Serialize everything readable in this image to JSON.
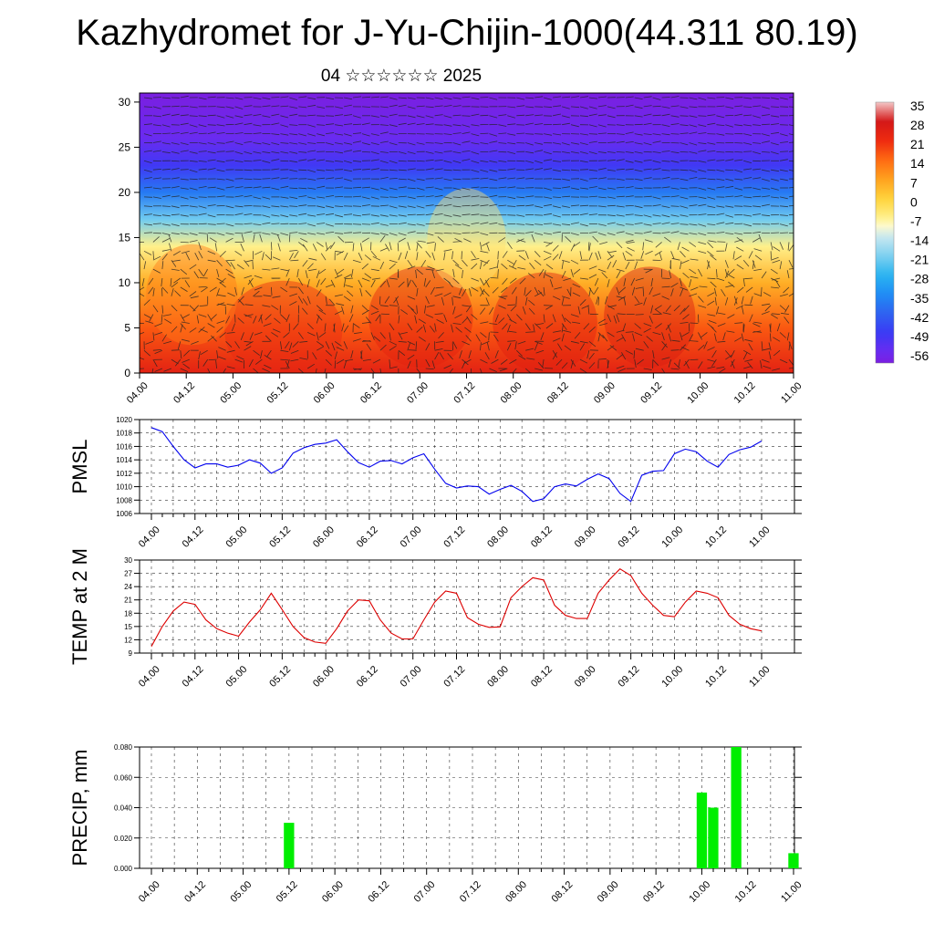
{
  "title": "Kazhydromet for J-Yu-Chijin-1000(44.311 80.19)",
  "subtitle": "04 ☆☆☆☆☆☆ 2025",
  "time_labels": [
    "04.00",
    "04.12",
    "05.00",
    "05.12",
    "06.00",
    "06.12",
    "07.00",
    "07.12",
    "08.00",
    "08.12",
    "09.00",
    "09.12",
    "10.00",
    "10.12",
    "11.00"
  ],
  "colorbar": {
    "labels": [
      "35",
      "28",
      "21",
      "14",
      "7",
      "0",
      "-7",
      "-14",
      "-21",
      "-28",
      "-35",
      "-42",
      "-49",
      "-56"
    ]
  },
  "chart_data": [
    {
      "type": "heatmap",
      "title": "",
      "xlabel": "",
      "ylabel": "",
      "x": [
        "04.00",
        "04.12",
        "05.00",
        "05.12",
        "06.00",
        "06.12",
        "07.00",
        "07.12",
        "08.00",
        "08.12",
        "09.00",
        "09.12",
        "10.00",
        "10.12",
        "11.00"
      ],
      "y_ticks": [
        0,
        5,
        10,
        15,
        20,
        25,
        30
      ],
      "ylim": [
        0,
        31
      ],
      "value_range": [
        -56,
        35
      ],
      "description_levels": [
        {
          "height": 0,
          "value": 24
        },
        {
          "height": 5,
          "value": 16
        },
        {
          "height": 10,
          "value": 5
        },
        {
          "height": 14,
          "value": -7
        },
        {
          "height": 17,
          "value": -22
        },
        {
          "height": 20,
          "value": -38
        },
        {
          "height": 23,
          "value": -50
        },
        {
          "height": 26,
          "value": -56
        },
        {
          "height": 31,
          "value": -60
        }
      ]
    },
    {
      "type": "line",
      "ylabel": "PMSL",
      "ylim": [
        1006,
        1020
      ],
      "y_ticks": [
        1006,
        1008,
        1010,
        1012,
        1014,
        1016,
        1018,
        1020
      ],
      "color": "#0000ee",
      "x_step_hours": 3,
      "values": [
        1018.8,
        1018.2,
        1016,
        1014,
        1012.8,
        1013.4,
        1013.4,
        1012.9,
        1013.2,
        1014,
        1013.5,
        1012,
        1012.8,
        1015,
        1015.8,
        1016.3,
        1016.5,
        1017,
        1015.2,
        1013.6,
        1012.9,
        1013.8,
        1013.9,
        1013.4,
        1014.3,
        1014.9,
        1012.6,
        1010.5,
        1009.8,
        1010.1,
        1010,
        1008.9,
        1009.6,
        1010.2,
        1009.3,
        1007.8,
        1008.2,
        1010,
        1010.4,
        1010.1,
        1011.1,
        1011.9,
        1011.2,
        1009,
        1007.8,
        1011.7,
        1012.3,
        1012.4,
        1014.9,
        1015.6,
        1015.2,
        1013.8,
        1012.9,
        1014.8,
        1015.5,
        1015.9,
        1016.8
      ]
    },
    {
      "type": "line",
      "ylabel": "TEMP at 2 M",
      "ylim": [
        9,
        30
      ],
      "y_ticks": [
        9,
        12,
        15,
        18,
        21,
        24,
        27,
        30
      ],
      "color": "#dd0000",
      "x_step_hours": 3,
      "values": [
        10.5,
        15,
        18.5,
        20.5,
        20,
        16.5,
        14.5,
        13.5,
        12.8,
        16,
        18.8,
        22.5,
        18.8,
        15,
        12.5,
        11.5,
        11.2,
        14.5,
        18.5,
        21,
        20.8,
        16.5,
        13.5,
        12.2,
        12.2,
        16.5,
        20.5,
        23,
        22.5,
        17,
        15.5,
        14.8,
        14.9,
        21.5,
        24,
        26,
        25.5,
        19.8,
        17.5,
        16.8,
        16.8,
        22.5,
        25.5,
        28,
        26.5,
        22.5,
        19.8,
        17.5,
        17.2,
        20.5,
        23,
        22.5,
        21.5,
        17.5,
        15.5,
        14.5,
        14
      ]
    },
    {
      "type": "bar",
      "ylabel": "PRECIP, mm",
      "ylim": [
        0,
        0.08
      ],
      "y_ticks": [
        "0.000",
        "0.020",
        "0.040",
        "0.060",
        "0.080"
      ],
      "color": "#00ee00",
      "x_step_hours": 3,
      "bars": [
        {
          "step": 12,
          "value": 0.03
        },
        {
          "step": 48,
          "value": 0.05
        },
        {
          "step": 49,
          "value": 0.04
        },
        {
          "step": 51,
          "value": 0.08
        },
        {
          "step": 56,
          "value": 0.01
        }
      ]
    }
  ]
}
